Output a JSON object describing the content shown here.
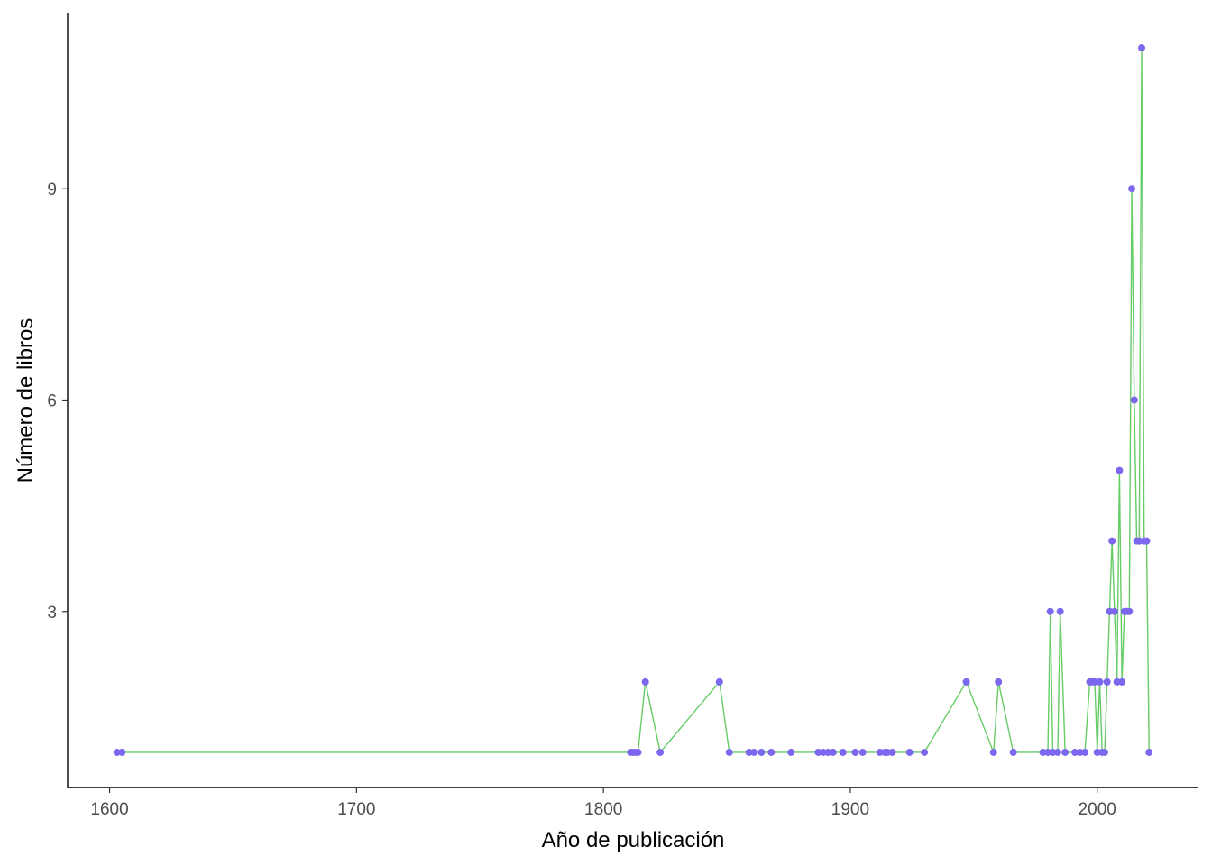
{
  "chart_data": {
    "type": "line",
    "title": "",
    "xlabel": "Año de publicación",
    "ylabel": "Número de libros",
    "xlim": [
      1583,
      2041
    ],
    "ylim": [
      0.5,
      11.5
    ],
    "x_ticks": [
      1600,
      1700,
      1800,
      1900,
      2000
    ],
    "y_ticks": [
      3,
      6,
      9
    ],
    "grid": false,
    "line_color": "#66CC66",
    "point_color": "#7B68EE",
    "series": [
      {
        "x": [
          1603,
          1605,
          1811,
          1812,
          1813,
          1814,
          1817,
          1823,
          1847,
          1851,
          1859,
          1861,
          1864,
          1868,
          1876,
          1887,
          1889,
          1891,
          1893,
          1897,
          1902,
          1905,
          1912,
          1914,
          1915,
          1917,
          1924,
          1930,
          1947,
          1958,
          1960,
          1966,
          1978,
          1980,
          1981,
          1982,
          1984,
          1985,
          1987,
          1991,
          1993,
          1995,
          1997,
          1998,
          1999,
          2000,
          2001,
          2002,
          2003,
          2004,
          2005,
          2006,
          2007,
          2008,
          2009,
          2010,
          2011,
          2012,
          2013,
          2014,
          2015,
          2016,
          2017,
          2018,
          2019,
          2020,
          2021
        ],
        "y": [
          1,
          1,
          1,
          1,
          1,
          1,
          2,
          1,
          2,
          1,
          1,
          1,
          1,
          1,
          1,
          1,
          1,
          1,
          1,
          1,
          1,
          1,
          1,
          1,
          1,
          1,
          1,
          1,
          2,
          1,
          2,
          1,
          1,
          1,
          3,
          1,
          1,
          3,
          1,
          1,
          1,
          1,
          2,
          2,
          2,
          1,
          2,
          1,
          1,
          2,
          3,
          4,
          3,
          2,
          5,
          2,
          3,
          3,
          3,
          9,
          6,
          4,
          4,
          11,
          4,
          4,
          1
        ]
      }
    ]
  }
}
